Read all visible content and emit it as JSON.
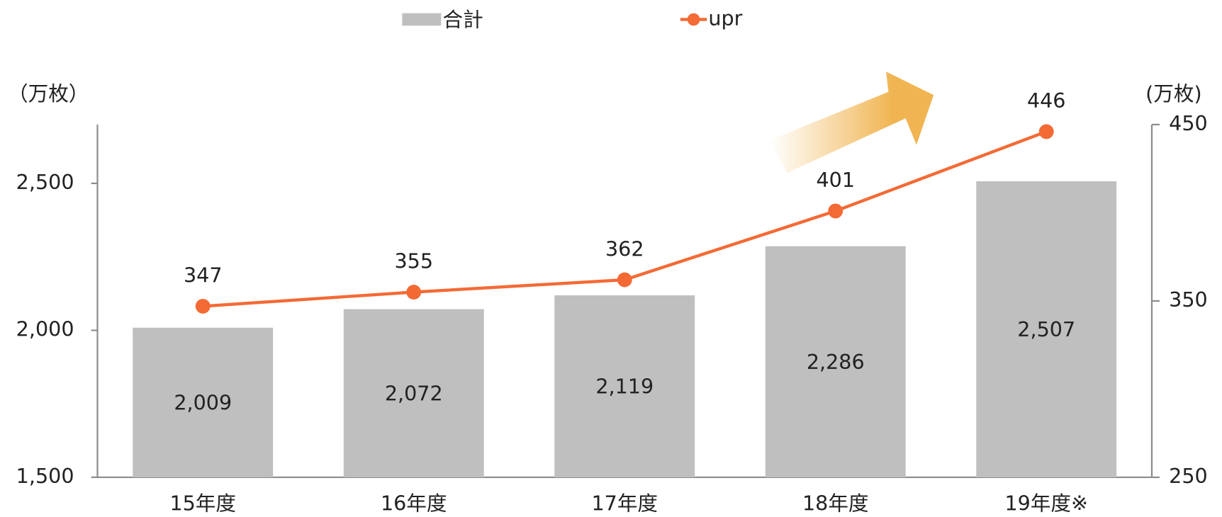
{
  "chart_data": {
    "type": "bar",
    "categories": [
      "15年度",
      "16年度",
      "17年度",
      "18年度",
      "19年度※"
    ],
    "series": [
      {
        "name": "合計",
        "type": "bar",
        "color": "#bfbfbf",
        "values": [
          2009,
          2072,
          2119,
          2286,
          2507
        ],
        "value_labels": [
          "2,009",
          "2,072",
          "2,119",
          "2,286",
          "2,507"
        ]
      },
      {
        "name": "upr",
        "type": "line",
        "color": "#f46a35",
        "axis": "y2",
        "values": [
          347,
          355,
          362,
          401,
          446
        ]
      }
    ],
    "ylabel": "（万枚）",
    "y2label": "(万枚)",
    "ylim": [
      1500,
      2700
    ],
    "yticks": [
      {
        "value": 1500,
        "label": "1,500"
      },
      {
        "value": 2000,
        "label": "2,000"
      },
      {
        "value": 2500,
        "label": "2,500"
      }
    ],
    "y2lim": [
      250,
      450
    ],
    "y2ticks": [
      250,
      350,
      450
    ],
    "legend": "top"
  }
}
